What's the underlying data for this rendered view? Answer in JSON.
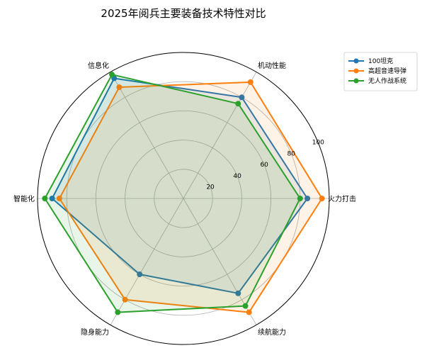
{
  "chart_data": {
    "type": "radar",
    "title": "2025年阅兵主要装备技术特性对比",
    "axes": [
      "火力打击",
      "机动性能",
      "信息化",
      "智能化",
      "隐身能力",
      "续航能力"
    ],
    "rlim": [
      0,
      100
    ],
    "rticks": [
      20,
      40,
      60,
      80,
      100
    ],
    "grid": true,
    "legend_position": "top-right",
    "series": [
      {
        "name": "100坦克",
        "color": "#1f77b4",
        "values": [
          85,
          80,
          95,
          90,
          60,
          75
        ]
      },
      {
        "name": "高超音速导弹",
        "color": "#ff7f0e",
        "values": [
          95,
          92,
          88,
          85,
          80,
          90
        ]
      },
      {
        "name": "无人作战系统",
        "color": "#2ca02c",
        "values": [
          80,
          75,
          98,
          95,
          90,
          85
        ]
      }
    ]
  }
}
